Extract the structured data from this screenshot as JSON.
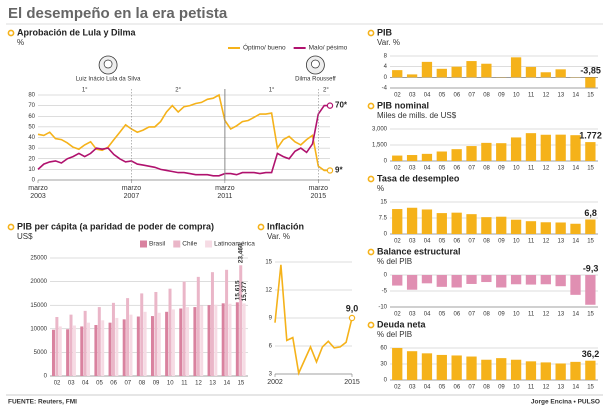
{
  "title": "El desempeño en la era petista",
  "source": "FUENTE: Reuters, FMI",
  "credit": "Jorge Encina • PULSO",
  "chart_data": [
    {
      "type": "line",
      "title": "Aprobación de Lula y Dilma",
      "y_label": "%",
      "categories": [
        "marzo 2003",
        null,
        null,
        null,
        null,
        null,
        null,
        null,
        null,
        null,
        null,
        null,
        null,
        null,
        null,
        null,
        "marzo 2007",
        null,
        null,
        null,
        null,
        null,
        null,
        null,
        null,
        null,
        null,
        null,
        null,
        null,
        null,
        null,
        "marzo 2011",
        null,
        null,
        null,
        null,
        null,
        null,
        null,
        null,
        null,
        null,
        null,
        null,
        null,
        null,
        null,
        "marzo 2015",
        null,
        null
      ],
      "series": [
        {
          "name": "Óptimo/ bueno",
          "color": "#f5b21a",
          "values": [
            43,
            42,
            45,
            39,
            38,
            35,
            31,
            29,
            33,
            36,
            29,
            28,
            31,
            38,
            45,
            52,
            48,
            45,
            47,
            50,
            50,
            55,
            64,
            70,
            64,
            69,
            70,
            72,
            73,
            76,
            77,
            80,
            56,
            48,
            51,
            55,
            56,
            59,
            62,
            62,
            63,
            30,
            38,
            41,
            36,
            33,
            38,
            42,
            13,
            9,
            9
          ],
          "value_labels": [
            null,
            null,
            null,
            null,
            null,
            null,
            null,
            null,
            null,
            null,
            null,
            null,
            null,
            null,
            null,
            null,
            null,
            null,
            null,
            null,
            null,
            null,
            null,
            null,
            null,
            null,
            null,
            null,
            null,
            null,
            null,
            null,
            null,
            null,
            null,
            null,
            null,
            null,
            null,
            null,
            null,
            null,
            null,
            null,
            null,
            null,
            null,
            null,
            null,
            null,
            "9*"
          ]
        },
        {
          "name": "Malo/ pésimo",
          "color": "#b0126e",
          "values": [
            10,
            15,
            17,
            18,
            16,
            20,
            22,
            25,
            22,
            25,
            30,
            29,
            30,
            24,
            20,
            17,
            18,
            15,
            14,
            13,
            12,
            10,
            9,
            8,
            7,
            7,
            6,
            5,
            5,
            5,
            4,
            4,
            6,
            6,
            5,
            7,
            7,
            7,
            6,
            7,
            7,
            25,
            22,
            20,
            27,
            30,
            26,
            34,
            62,
            70,
            70
          ],
          "value_labels": [
            null,
            null,
            null,
            null,
            null,
            null,
            null,
            null,
            null,
            null,
            null,
            null,
            null,
            null,
            null,
            null,
            null,
            null,
            null,
            null,
            null,
            null,
            null,
            null,
            null,
            null,
            null,
            null,
            null,
            null,
            null,
            null,
            null,
            null,
            null,
            null,
            null,
            null,
            null,
            null,
            null,
            null,
            null,
            null,
            null,
            null,
            null,
            null,
            null,
            null,
            "70*"
          ]
        }
      ],
      "ylim": [
        0,
        80
      ],
      "yticks": [
        0,
        10,
        20,
        30,
        40,
        50,
        60,
        70,
        80
      ],
      "grid": true,
      "annotations": [
        "Luiz Inácio Lula da Silva",
        "Dilma Rousseff",
        "1°",
        "2°",
        "1°",
        "2°"
      ]
    },
    {
      "type": "bar",
      "title": "PIB per cápita (a paridad de poder de compra)",
      "y_label": "US$",
      "categories": [
        "02",
        "03",
        "04",
        "05",
        "06",
        "07",
        "08",
        "09",
        "10",
        "11",
        "12",
        "13",
        "14",
        "15"
      ],
      "series": [
        {
          "name": "Brasil",
          "color": "#d9829f",
          "values": [
            9800,
            9900,
            10500,
            10800,
            11300,
            12000,
            12600,
            12700,
            13600,
            14300,
            14600,
            15000,
            15400,
            15615
          ],
          "value_labels": [
            null,
            null,
            null,
            null,
            null,
            null,
            null,
            null,
            null,
            null,
            null,
            null,
            null,
            "15,615"
          ]
        },
        {
          "name": "Chile",
          "color": "#eab6c8",
          "values": [
            12500,
            13000,
            13800,
            14600,
            15500,
            16500,
            17500,
            17800,
            18500,
            20000,
            21000,
            22000,
            22500,
            23460
          ],
          "value_labels": [
            null,
            null,
            null,
            null,
            null,
            null,
            null,
            null,
            null,
            null,
            null,
            null,
            null,
            "23,460"
          ]
        },
        {
          "name": "Latinoamérica",
          "color": "#f6dbe4",
          "values": [
            10500,
            10700,
            11300,
            11800,
            12300,
            13000,
            13600,
            13400,
            14100,
            14600,
            14900,
            15100,
            15300,
            15377
          ],
          "value_labels": [
            null,
            null,
            null,
            null,
            null,
            null,
            null,
            null,
            null,
            null,
            null,
            null,
            null,
            "15,377"
          ]
        }
      ],
      "ylim": [
        0,
        25000
      ],
      "yticks": [
        0,
        5000,
        10000,
        15000,
        20000,
        25000
      ],
      "grid": true
    },
    {
      "type": "line",
      "title": "Inflación",
      "y_label": "Var. %",
      "x": [
        2002,
        2003,
        2004,
        2005,
        2006,
        2007,
        2008,
        2009,
        2010,
        2011,
        2012,
        2013,
        2014,
        2015
      ],
      "series": [
        {
          "color": "#f5b21a",
          "values": [
            8.5,
            14.7,
            6.6,
            6.9,
            3.1,
            4.5,
            5.9,
            4.3,
            5.9,
            6.5,
            5.8,
            5.9,
            6.4,
            9.0
          ],
          "value_labels": [
            null,
            null,
            null,
            null,
            null,
            null,
            null,
            null,
            null,
            null,
            null,
            null,
            null,
            "9,0"
          ]
        }
      ],
      "xlim": [
        2002,
        2015
      ],
      "xticks": [
        2002,
        2015
      ],
      "ylim": [
        3,
        15
      ],
      "yticks": [
        3,
        6,
        9,
        12,
        15
      ],
      "grid": true
    },
    {
      "type": "bar",
      "title": "PIB",
      "y_label": "Var. %",
      "categories": [
        "02",
        "03",
        "04",
        "05",
        "06",
        "07",
        "08",
        "09",
        "10",
        "11",
        "12",
        "13",
        "14",
        "15"
      ],
      "values": [
        2.7,
        1.1,
        5.8,
        3.2,
        4.0,
        6.1,
        5.1,
        -0.1,
        7.5,
        3.9,
        1.9,
        3.0,
        0.1,
        -3.85
      ],
      "value_labels": [
        null,
        null,
        null,
        null,
        null,
        null,
        null,
        null,
        null,
        null,
        null,
        null,
        null,
        "-3,85"
      ],
      "color": "#f5b21a",
      "ylim": [
        -4,
        8
      ],
      "yticks": [
        -4,
        0,
        4,
        8
      ],
      "grid": true
    },
    {
      "type": "bar",
      "title": "PIB nominal",
      "y_label": "Miles de mills. de US$",
      "categories": [
        "02",
        "03",
        "04",
        "05",
        "06",
        "07",
        "08",
        "09",
        "10",
        "11",
        "12",
        "13",
        "14",
        "15"
      ],
      "values": [
        510,
        560,
        670,
        890,
        1110,
        1400,
        1700,
        1670,
        2210,
        2610,
        2460,
        2470,
        2420,
        1772
      ],
      "value_labels": [
        null,
        null,
        null,
        null,
        null,
        null,
        null,
        null,
        null,
        null,
        null,
        null,
        null,
        "1.772"
      ],
      "color": "#f5b21a",
      "ylim": [
        0,
        3000
      ],
      "yticks": [
        0,
        {
          "value": 1500,
          "label": "1,500"
        },
        {
          "value": 3000,
          "label": "3,000"
        }
      ],
      "grid": true
    },
    {
      "type": "bar",
      "title": "Tasa de desempleo",
      "y_label": "%",
      "categories": [
        "02",
        "03",
        "04",
        "05",
        "06",
        "07",
        "08",
        "09",
        "10",
        "11",
        "12",
        "13",
        "14",
        "15"
      ],
      "values": [
        11.7,
        12.3,
        11.5,
        9.8,
        10.0,
        9.3,
        7.9,
        8.1,
        6.7,
        6.0,
        5.5,
        5.4,
        4.8,
        6.8
      ],
      "value_labels": [
        null,
        null,
        null,
        null,
        null,
        null,
        null,
        null,
        null,
        null,
        null,
        null,
        null,
        "6,8"
      ],
      "color": "#f5b21a",
      "ylim": [
        0,
        15
      ],
      "yticks": [
        0,
        7.5,
        15
      ],
      "grid": true
    },
    {
      "type": "bar",
      "title": "Balance estructural",
      "y_label": "% del PIB",
      "categories": [
        "02",
        "03",
        "04",
        "05",
        "06",
        "07",
        "08",
        "09",
        "10",
        "11",
        "12",
        "13",
        "14",
        "15"
      ],
      "values": [
        -3.3,
        -4.6,
        -2.6,
        -3.7,
        -3.9,
        -2.8,
        -2.2,
        -3.9,
        -2.9,
        -3.0,
        -2.9,
        -3.5,
        -6.2,
        -9.3
      ],
      "value_labels": [
        null,
        null,
        null,
        null,
        null,
        null,
        null,
        null,
        null,
        null,
        null,
        null,
        null,
        "-9,3"
      ],
      "color": "#e08fb2",
      "ylim": [
        -10,
        0
      ],
      "yticks": [
        -10,
        -5,
        0
      ],
      "grid": true
    },
    {
      "type": "bar",
      "title": "Deuda neta",
      "y_label": "% del PIB",
      "categories": [
        "02",
        "03",
        "04",
        "05",
        "06",
        "07",
        "08",
        "09",
        "10",
        "11",
        "12",
        "13",
        "14",
        "15"
      ],
      "values": [
        60,
        54,
        50,
        47,
        46,
        44,
        38,
        41,
        38,
        35,
        33,
        31,
        34,
        36.2
      ],
      "value_labels": [
        null,
        null,
        null,
        null,
        null,
        null,
        null,
        null,
        null,
        null,
        null,
        null,
        null,
        "36,2"
      ],
      "color": "#f5b21a",
      "ylim": [
        0,
        60
      ],
      "yticks": [
        0,
        30,
        60
      ],
      "grid": true
    }
  ]
}
